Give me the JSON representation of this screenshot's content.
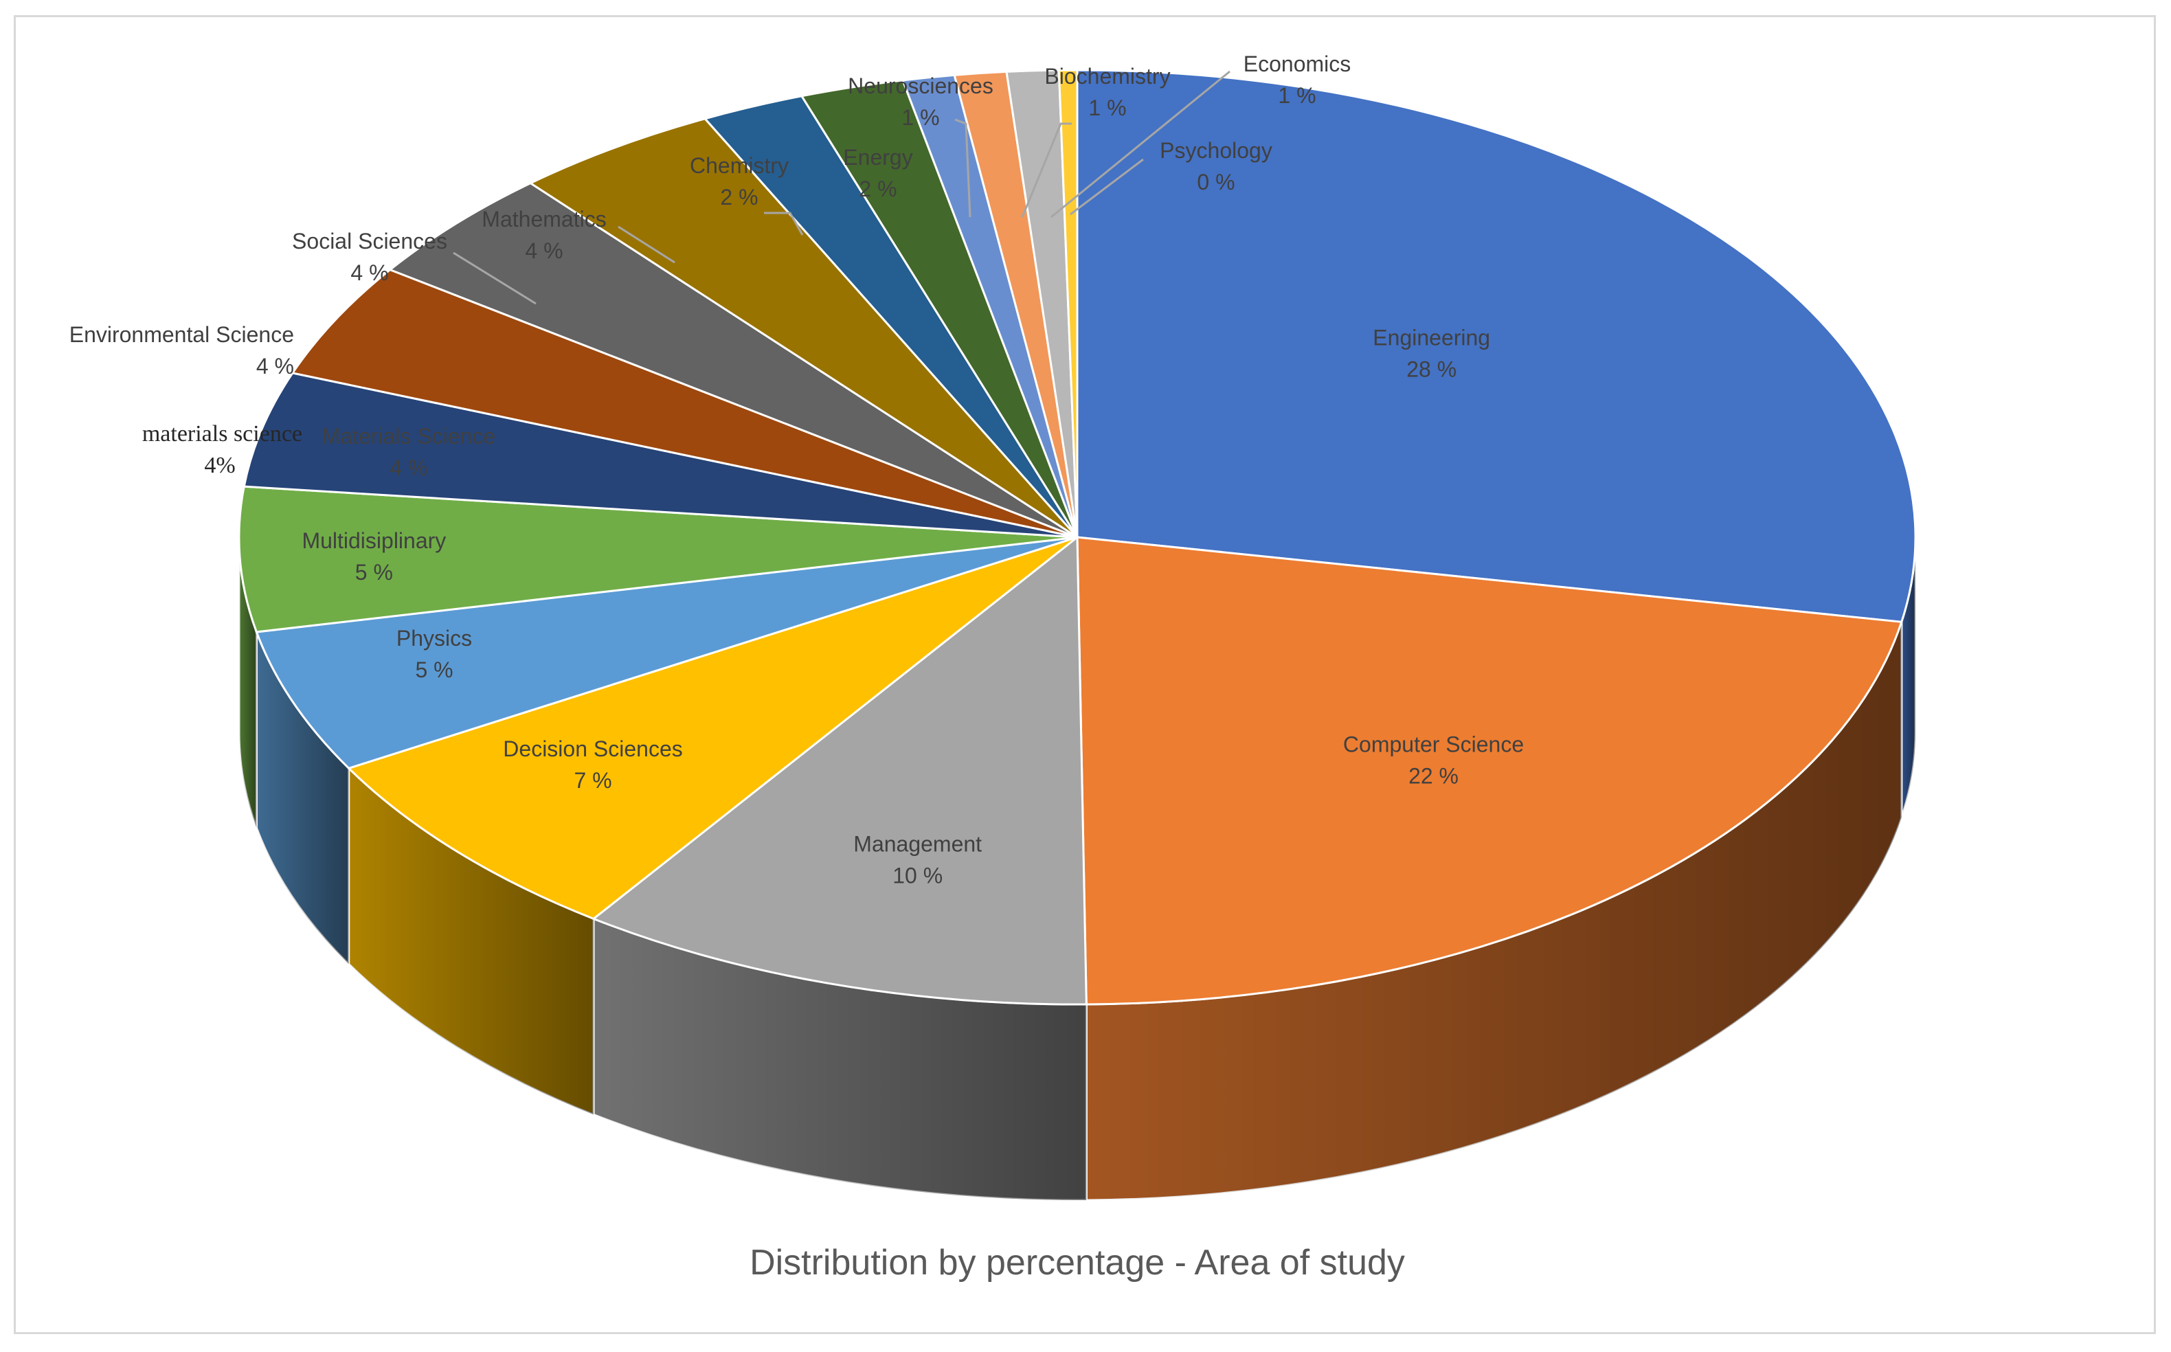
{
  "chart_data": {
    "type": "pie",
    "title": "Distribution by percentage - Area of study",
    "categories": [
      "Engineering",
      "Computer Science",
      "Management",
      "Decision Sciences",
      "Physics",
      "Multidisiplinary",
      "Materials Science",
      "Environmental Science",
      "Social Sciences",
      "Mathematics",
      "Chemistry",
      "Energy",
      "Neurosciences",
      "Biochemistry",
      "Economics",
      "Psychology"
    ],
    "values": [
      28,
      22,
      10,
      7,
      5,
      5,
      4,
      4,
      4,
      4,
      2,
      2,
      1,
      1,
      1,
      0
    ],
    "value_labels": [
      "28 %",
      "22 %",
      "10 %",
      "7 %",
      "5 %",
      "5 %",
      "4 %",
      "4 %",
      "4 %",
      "4 %",
      "2 %",
      "2 %",
      "1 %",
      "1 %",
      "1 %",
      "0 %"
    ],
    "colors": [
      "#4472C4",
      "#ED7D31",
      "#A5A5A5",
      "#FFC000",
      "#5B9BD5",
      "#70AD47",
      "#264478",
      "#9E480E",
      "#636363",
      "#997300",
      "#255E91",
      "#43682B",
      "#698ED0",
      "#F1975A",
      "#B7B7B7",
      "#FFCD33"
    ],
    "annotation": {
      "label": "materials science",
      "value": "4%"
    }
  }
}
